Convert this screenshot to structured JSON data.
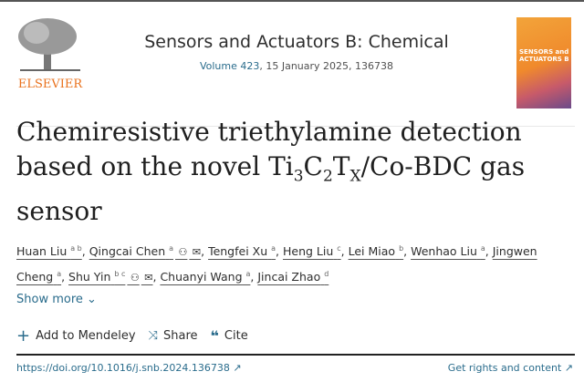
{
  "header": {
    "publisher_logo_text": "ELSEVIER",
    "journal": "Sensors and Actuators B: Chemical",
    "volume_link": "Volume 423",
    "volume_rest": ", 15 January 2025, 136738",
    "cover_text": "SENSORS and ACTUATORS B"
  },
  "article": {
    "title_line1": "Chemiresistive triethylamine detection",
    "title_line2a": "based on the novel Ti",
    "title_sub1": "3",
    "title_c": "C",
    "title_sub2": "2",
    "title_t": "T",
    "title_sub3": "X",
    "title_line2b": "/Co-BDC gas",
    "title_line3": "sensor"
  },
  "authors": [
    {
      "name": "Huan Liu",
      "sup": "a b",
      "icons": false
    },
    {
      "name": "Qingcai Chen",
      "sup": "a",
      "icons": true
    },
    {
      "name": "Tengfei Xu",
      "sup": "a",
      "icons": false
    },
    {
      "name": "Heng Liu",
      "sup": "c",
      "icons": false
    },
    {
      "name": "Lei Miao",
      "sup": "b",
      "icons": false
    },
    {
      "name": "Wenhao Liu",
      "sup": "a",
      "icons": false
    },
    {
      "name": "Jingwen Cheng",
      "sup": "a",
      "icons": false
    },
    {
      "name": "Shu Yin",
      "sup": "b c",
      "icons": true
    },
    {
      "name": "Chuanyi Wang",
      "sup": "a",
      "icons": false
    },
    {
      "name": "Jincai Zhao",
      "sup": "d",
      "icons": false
    }
  ],
  "show_more": "Show more",
  "actions": {
    "mendeley": "Add to Mendeley",
    "share": "Share",
    "cite": "Cite"
  },
  "links": {
    "doi": "https://doi.org/10.1016/j.snb.2024.136738",
    "rights": "Get rights and content"
  },
  "colors": {
    "link": "#2a6c8c",
    "elsevier_orange": "#e9711c"
  }
}
